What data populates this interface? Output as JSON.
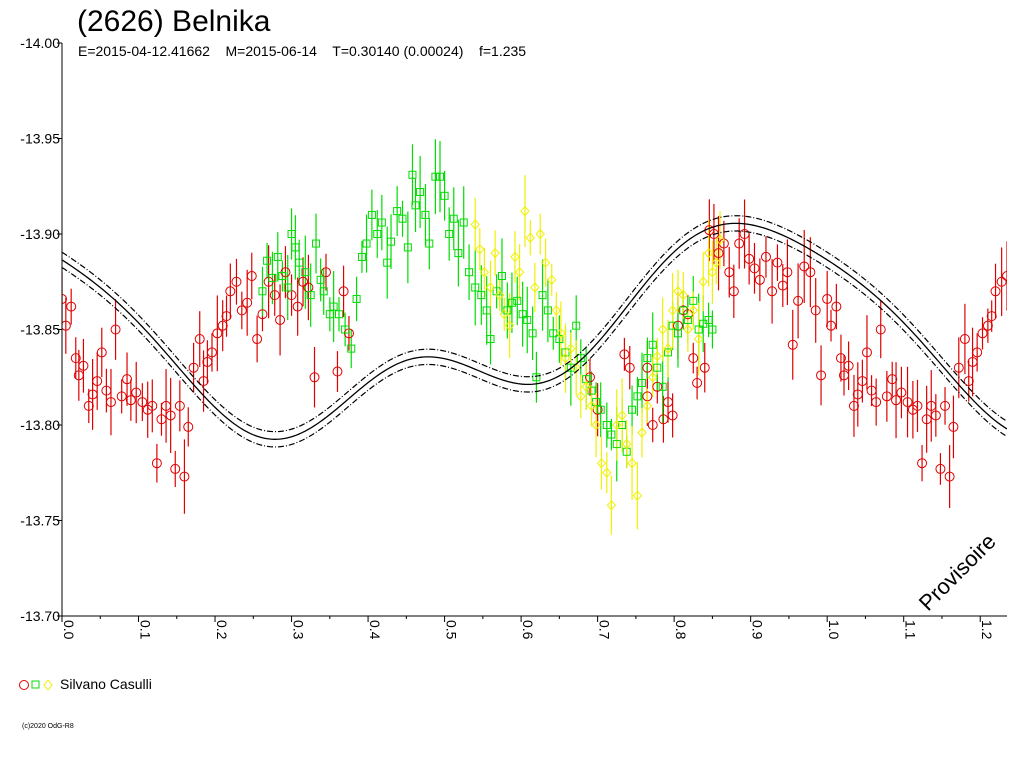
{
  "chart_data": {
    "type": "scatter",
    "title": "(2626) Belnika",
    "subtitle": "E=2015-04-12.41662    M=2015-06-14    T=0.30140 (0.00024)    f=1.235",
    "xlabel": "",
    "ylabel": "",
    "xlim": [
      0.0,
      1.235
    ],
    "ylim": [
      -14.0,
      -13.7
    ],
    "y_inverted": true,
    "x_ticks": [
      "0.0",
      "0.1",
      "0.2",
      "0.3",
      "0.4",
      "0.5",
      "0.6",
      "0.7",
      "0.8",
      "0.9",
      "1.0",
      "1.1",
      "1.2"
    ],
    "y_ticks": [
      "-14.00",
      "-13.95",
      "-13.90",
      "-13.85",
      "-13.80",
      "-13.75",
      "-13.70"
    ],
    "grid": false,
    "legend": {
      "placement": "bottom-left",
      "entries": [
        "Silvano Casulli"
      ]
    },
    "series_colors": {
      "red": "#e00000",
      "green": "#00dd00",
      "yellow": "#f0f000"
    },
    "fit_curve": {
      "mean": -13.846,
      "terms": [
        {
          "n": 1,
          "amp": -0.045,
          "phase_max": 0.88
        },
        {
          "n": 2,
          "amp": -0.02,
          "phase_max": 0.44
        },
        {
          "n": 3,
          "amp": -0.009,
          "phase_max": 0.13
        }
      ],
      "band": 0.004
    },
    "series": [
      {
        "marker": "circle",
        "color": "#e00000",
        "points": [
          [
            0.0,
            -13.866
          ],
          [
            0.005,
            -13.852
          ],
          [
            0.012,
            -13.862
          ],
          [
            0.018,
            -13.835
          ],
          [
            0.022,
            -13.826
          ],
          [
            0.028,
            -13.831
          ],
          [
            0.035,
            -13.81
          ],
          [
            0.04,
            -13.816
          ],
          [
            0.046,
            -13.823
          ],
          [
            0.052,
            -13.838
          ],
          [
            0.058,
            -13.818
          ],
          [
            0.064,
            -13.812
          ],
          [
            0.07,
            -13.85
          ],
          [
            0.078,
            -13.815
          ],
          [
            0.085,
            -13.824
          ],
          [
            0.09,
            -13.813
          ],
          [
            0.097,
            -13.817
          ],
          [
            0.105,
            -13.812
          ],
          [
            0.112,
            -13.808
          ],
          [
            0.118,
            -13.81
          ],
          [
            0.124,
            -13.78
          ],
          [
            0.13,
            -13.803
          ],
          [
            0.136,
            -13.81
          ],
          [
            0.142,
            -13.805
          ],
          [
            0.148,
            -13.777
          ],
          [
            0.154,
            -13.81
          ],
          [
            0.16,
            -13.773
          ],
          [
            0.165,
            -13.799
          ],
          [
            0.172,
            -13.83
          ],
          [
            0.18,
            -13.845
          ],
          [
            0.185,
            -13.823
          ],
          [
            0.19,
            -13.833
          ],
          [
            0.196,
            -13.838
          ],
          [
            0.203,
            -13.848
          ],
          [
            0.21,
            -13.852
          ],
          [
            0.215,
            -13.857
          ],
          [
            0.22,
            -13.87
          ],
          [
            0.228,
            -13.875
          ],
          [
            0.235,
            -13.86
          ],
          [
            0.242,
            -13.864
          ],
          [
            0.248,
            -13.878
          ],
          [
            0.255,
            -13.845
          ],
          [
            0.262,
            -13.858
          ],
          [
            0.27,
            -13.875
          ],
          [
            0.278,
            -13.868
          ],
          [
            0.285,
            -13.855
          ],
          [
            0.292,
            -13.88
          ],
          [
            0.3,
            -13.868
          ],
          [
            0.308,
            -13.862
          ],
          [
            0.315,
            -13.875
          ],
          [
            0.322,
            -13.872
          ],
          [
            0.33,
            -13.825
          ],
          [
            0.345,
            -13.88
          ],
          [
            0.36,
            -13.828
          ],
          [
            0.368,
            -13.87
          ],
          [
            0.375,
            -13.848
          ],
          [
            0.83,
            -13.822
          ],
          [
            0.84,
            -13.83
          ],
          [
            0.846,
            -13.902
          ],
          [
            0.852,
            -13.9
          ],
          [
            0.858,
            -13.89
          ],
          [
            0.865,
            -13.895
          ],
          [
            0.872,
            -13.88
          ],
          [
            0.878,
            -13.87
          ],
          [
            0.885,
            -13.895
          ],
          [
            0.892,
            -13.9
          ],
          [
            0.898,
            -13.887
          ],
          [
            0.905,
            -13.882
          ],
          [
            0.912,
            -13.876
          ],
          [
            0.92,
            -13.888
          ],
          [
            0.928,
            -13.87
          ],
          [
            0.935,
            -13.885
          ],
          [
            0.942,
            -13.873
          ],
          [
            0.948,
            -13.88
          ],
          [
            0.955,
            -13.842
          ],
          [
            0.962,
            -13.865
          ],
          [
            0.97,
            -13.883
          ],
          [
            0.978,
            -13.88
          ],
          [
            0.985,
            -13.86
          ],
          [
            0.992,
            -13.826
          ],
          [
            1.0,
            -13.866
          ],
          [
            1.005,
            -13.852
          ],
          [
            1.012,
            -13.862
          ],
          [
            1.018,
            -13.835
          ],
          [
            1.022,
            -13.826
          ],
          [
            1.028,
            -13.831
          ],
          [
            1.035,
            -13.81
          ],
          [
            1.04,
            -13.816
          ],
          [
            1.046,
            -13.823
          ],
          [
            1.052,
            -13.838
          ],
          [
            1.058,
            -13.818
          ],
          [
            1.064,
            -13.812
          ],
          [
            1.07,
            -13.85
          ],
          [
            1.078,
            -13.815
          ],
          [
            1.085,
            -13.824
          ],
          [
            1.09,
            -13.813
          ],
          [
            1.097,
            -13.817
          ],
          [
            1.105,
            -13.812
          ],
          [
            1.112,
            -13.808
          ],
          [
            1.118,
            -13.81
          ],
          [
            1.124,
            -13.78
          ],
          [
            1.13,
            -13.803
          ],
          [
            1.136,
            -13.81
          ],
          [
            1.142,
            -13.805
          ],
          [
            1.148,
            -13.777
          ],
          [
            1.154,
            -13.81
          ],
          [
            1.16,
            -13.773
          ],
          [
            1.165,
            -13.799
          ],
          [
            1.172,
            -13.83
          ],
          [
            1.18,
            -13.845
          ],
          [
            1.185,
            -13.823
          ],
          [
            1.19,
            -13.833
          ],
          [
            1.196,
            -13.838
          ],
          [
            1.203,
            -13.848
          ],
          [
            1.21,
            -13.852
          ],
          [
            1.215,
            -13.857
          ],
          [
            1.22,
            -13.87
          ],
          [
            1.228,
            -13.875
          ],
          [
            1.235,
            -13.878
          ],
          [
            0.69,
            -13.825
          ],
          [
            0.7,
            -13.808
          ],
          [
            0.735,
            -13.837
          ],
          [
            0.742,
            -13.83
          ],
          [
            0.765,
            -13.83
          ],
          [
            0.778,
            -13.82
          ],
          [
            0.786,
            -13.803
          ],
          [
            0.792,
            -13.812
          ],
          [
            0.798,
            -13.805
          ],
          [
            0.805,
            -13.852
          ],
          [
            0.812,
            -13.86
          ],
          [
            0.818,
            -13.858
          ],
          [
            0.825,
            -13.835
          ],
          [
            0.765,
            -13.815
          ],
          [
            0.772,
            -13.8
          ]
        ]
      },
      {
        "marker": "square",
        "color": "#00dd00",
        "points": [
          [
            0.262,
            -13.87
          ],
          [
            0.268,
            -13.886
          ],
          [
            0.275,
            -13.877
          ],
          [
            0.282,
            -13.888
          ],
          [
            0.288,
            -13.878
          ],
          [
            0.295,
            -13.872
          ],
          [
            0.3,
            -13.9
          ],
          [
            0.305,
            -13.893
          ],
          [
            0.31,
            -13.885
          ],
          [
            0.318,
            -13.88
          ],
          [
            0.325,
            -13.868
          ],
          [
            0.332,
            -13.895
          ],
          [
            0.338,
            -13.876
          ],
          [
            0.342,
            -13.87
          ],
          [
            0.35,
            -13.858
          ],
          [
            0.355,
            -13.862
          ],
          [
            0.362,
            -13.858
          ],
          [
            0.37,
            -13.85
          ],
          [
            0.378,
            -13.84
          ],
          [
            0.385,
            -13.866
          ],
          [
            0.392,
            -13.888
          ],
          [
            0.398,
            -13.895
          ],
          [
            0.405,
            -13.91
          ],
          [
            0.412,
            -13.9
          ],
          [
            0.418,
            -13.906
          ],
          [
            0.425,
            -13.885
          ],
          [
            0.43,
            -13.896
          ],
          [
            0.438,
            -13.912
          ],
          [
            0.445,
            -13.908
          ],
          [
            0.452,
            -13.893
          ],
          [
            0.458,
            -13.931
          ],
          [
            0.462,
            -13.915
          ],
          [
            0.468,
            -13.922
          ],
          [
            0.475,
            -13.91
          ],
          [
            0.48,
            -13.895
          ],
          [
            0.488,
            -13.93
          ],
          [
            0.494,
            -13.93
          ],
          [
            0.5,
            -13.92
          ],
          [
            0.506,
            -13.9
          ],
          [
            0.512,
            -13.908
          ],
          [
            0.518,
            -13.89
          ],
          [
            0.525,
            -13.906
          ],
          [
            0.532,
            -13.88
          ],
          [
            0.54,
            -13.872
          ],
          [
            0.548,
            -13.868
          ],
          [
            0.555,
            -13.86
          ],
          [
            0.56,
            -13.845
          ],
          [
            0.568,
            -13.87
          ],
          [
            0.575,
            -13.878
          ],
          [
            0.582,
            -13.86
          ],
          [
            0.588,
            -13.864
          ],
          [
            0.595,
            -13.865
          ],
          [
            0.602,
            -13.858
          ],
          [
            0.608,
            -13.855
          ],
          [
            0.615,
            -13.848
          ],
          [
            0.62,
            -13.825
          ],
          [
            0.628,
            -13.868
          ],
          [
            0.635,
            -13.86
          ],
          [
            0.642,
            -13.848
          ],
          [
            0.65,
            -13.845
          ],
          [
            0.658,
            -13.838
          ],
          [
            0.665,
            -13.83
          ],
          [
            0.672,
            -13.852
          ],
          [
            0.678,
            -13.835
          ],
          [
            0.685,
            -13.824
          ],
          [
            0.692,
            -13.818
          ],
          [
            0.698,
            -13.812
          ],
          [
            0.704,
            -13.808
          ],
          [
            0.712,
            -13.8
          ],
          [
            0.718,
            -13.795
          ],
          [
            0.725,
            -13.79
          ],
          [
            0.732,
            -13.8
          ],
          [
            0.738,
            -13.786
          ],
          [
            0.745,
            -13.808
          ],
          [
            0.752,
            -13.815
          ],
          [
            0.758,
            -13.822
          ],
          [
            0.765,
            -13.835
          ],
          [
            0.772,
            -13.842
          ],
          [
            0.778,
            -13.83
          ],
          [
            0.785,
            -13.82
          ],
          [
            0.792,
            -13.838
          ],
          [
            0.798,
            -13.852
          ],
          [
            0.805,
            -13.848
          ],
          [
            0.812,
            -13.86
          ],
          [
            0.818,
            -13.855
          ],
          [
            0.825,
            -13.865
          ],
          [
            0.832,
            -13.85
          ],
          [
            0.838,
            -13.853
          ],
          [
            0.845,
            -13.855
          ],
          [
            0.85,
            -13.85
          ]
        ]
      },
      {
        "marker": "diamond",
        "color": "#f0f000",
        "points": [
          [
            0.54,
            -13.905
          ],
          [
            0.546,
            -13.892
          ],
          [
            0.552,
            -13.88
          ],
          [
            0.56,
            -13.872
          ],
          [
            0.566,
            -13.89
          ],
          [
            0.572,
            -13.868
          ],
          [
            0.578,
            -13.858
          ],
          [
            0.585,
            -13.852
          ],
          [
            0.592,
            -13.888
          ],
          [
            0.598,
            -13.88
          ],
          [
            0.605,
            -13.912
          ],
          [
            0.612,
            -13.898
          ],
          [
            0.618,
            -13.872
          ],
          [
            0.625,
            -13.9
          ],
          [
            0.632,
            -13.885
          ],
          [
            0.64,
            -13.876
          ],
          [
            0.646,
            -13.86
          ],
          [
            0.652,
            -13.848
          ],
          [
            0.658,
            -13.835
          ],
          [
            0.665,
            -13.84
          ],
          [
            0.672,
            -13.83
          ],
          [
            0.678,
            -13.815
          ],
          [
            0.685,
            -13.82
          ],
          [
            0.692,
            -13.81
          ],
          [
            0.698,
            -13.8
          ],
          [
            0.705,
            -13.78
          ],
          [
            0.712,
            -13.775
          ],
          [
            0.718,
            -13.758
          ],
          [
            0.725,
            -13.8
          ],
          [
            0.732,
            -13.805
          ],
          [
            0.738,
            -13.79
          ],
          [
            0.745,
            -13.78
          ],
          [
            0.752,
            -13.763
          ],
          [
            0.758,
            -13.796
          ],
          [
            0.765,
            -13.81
          ],
          [
            0.772,
            -13.825
          ],
          [
            0.778,
            -13.836
          ],
          [
            0.785,
            -13.85
          ],
          [
            0.792,
            -13.84
          ],
          [
            0.798,
            -13.86
          ],
          [
            0.805,
            -13.87
          ],
          [
            0.812,
            -13.868
          ],
          [
            0.818,
            -13.85
          ],
          [
            0.825,
            -13.86
          ],
          [
            0.832,
            -13.845
          ],
          [
            0.838,
            -13.875
          ],
          [
            0.845,
            -13.89
          ],
          [
            0.85,
            -13.88
          ],
          [
            0.855,
            -13.885
          ],
          [
            0.86,
            -13.897
          ]
        ]
      }
    ],
    "watermark": "Provisoire",
    "credit": "(c)2020 OdG-R8"
  }
}
